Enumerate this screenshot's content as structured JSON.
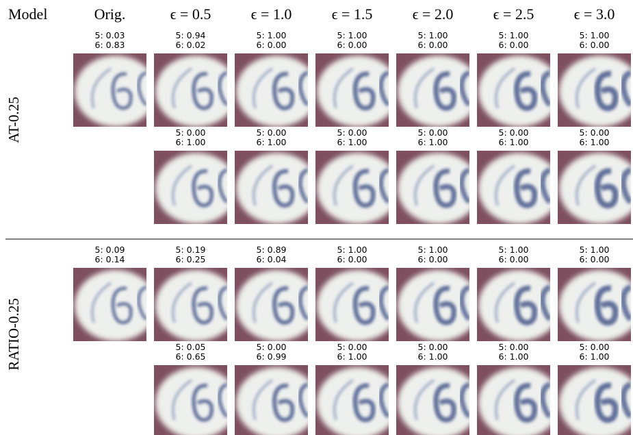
{
  "header": {
    "columns": [
      "Model",
      "Orig.",
      "ϵ = 0.5",
      "ϵ = 1.0",
      "ϵ = 1.5",
      "ϵ = 2.0",
      "ϵ = 2.5",
      "ϵ = 3.0"
    ]
  },
  "models": [
    {
      "name": "AT-0.25",
      "rows": [
        [
          [
            "5: 0.03",
            "6: 0.83"
          ],
          [
            "5: 0.94",
            "6: 0.02"
          ],
          [
            "5: 1.00",
            "6: 0.00"
          ],
          [
            "5: 1.00",
            "6: 0.00"
          ],
          [
            "5: 1.00",
            "6: 0.00"
          ],
          [
            "5: 1.00",
            "6: 0.00"
          ],
          [
            "5: 1.00",
            "6: 0.00"
          ]
        ],
        [
          [
            "5: 0.00",
            "6: 1.00"
          ],
          [
            "5: 0.00",
            "6: 1.00"
          ],
          [
            "5: 0.00",
            "6: 1.00"
          ],
          [
            "5: 0.00",
            "6: 1.00"
          ],
          [
            "5: 0.00",
            "6: 1.00"
          ],
          [
            "5: 0.00",
            "6: 1.00"
          ]
        ]
      ]
    },
    {
      "name": "RATIO-0.25",
      "rows": [
        [
          [
            "5: 0.09",
            "6: 0.14"
          ],
          [
            "5: 0.19",
            "6: 0.25"
          ],
          [
            "5: 0.89",
            "6: 0.04"
          ],
          [
            "5: 1.00",
            "6: 0.00"
          ],
          [
            "5: 1.00",
            "6: 0.00"
          ],
          [
            "5: 1.00",
            "6: 0.00"
          ],
          [
            "5: 1.00",
            "6: 0.00"
          ]
        ],
        [
          [
            "5: 0.05",
            "6: 0.65"
          ],
          [
            "5: 0.00",
            "6: 0.99"
          ],
          [
            "5: 0.00",
            "6: 1.00"
          ],
          [
            "5: 0.00",
            "6: 1.00"
          ],
          [
            "5: 0.00",
            "6: 1.00"
          ],
          [
            "5: 0.00",
            "6: 1.00"
          ]
        ]
      ]
    }
  ]
}
